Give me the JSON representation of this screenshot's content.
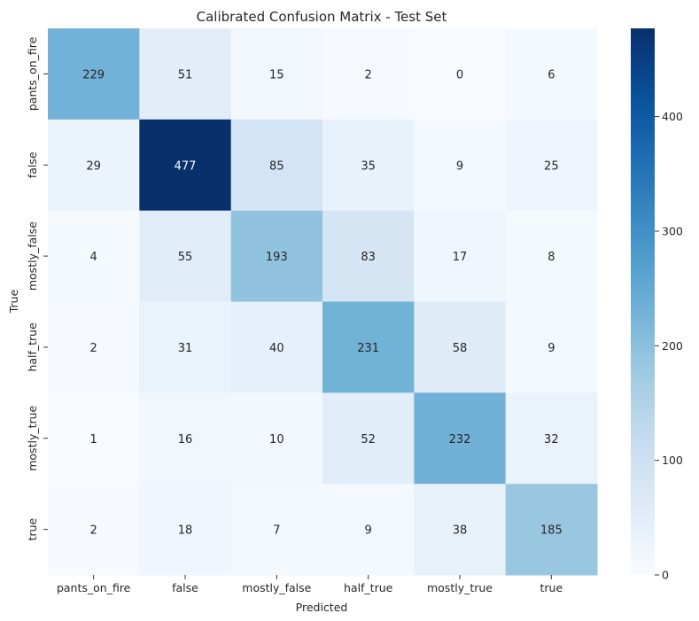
{
  "chart_data": {
    "type": "heatmap",
    "title": "Calibrated Confusion Matrix - Test Set",
    "xlabel": "Predicted",
    "ylabel": "True",
    "x_categories": [
      "pants_on_fire",
      "false",
      "mostly_false",
      "half_true",
      "mostly_true",
      "true"
    ],
    "y_categories": [
      "pants_on_fire",
      "false",
      "mostly_false",
      "half_true",
      "mostly_true",
      "true"
    ],
    "values": [
      [
        229,
        51,
        15,
        2,
        0,
        6
      ],
      [
        29,
        477,
        85,
        35,
        9,
        25
      ],
      [
        4,
        55,
        193,
        83,
        17,
        8
      ],
      [
        2,
        31,
        40,
        231,
        58,
        9
      ],
      [
        1,
        16,
        10,
        52,
        232,
        32
      ],
      [
        2,
        18,
        7,
        9,
        38,
        185
      ]
    ],
    "colormap": "Blues",
    "color_range": [
      0,
      477
    ],
    "colorbar_ticks": [
      0,
      100,
      200,
      300,
      400
    ],
    "colors": {
      "low": "#f7fbff",
      "high": "#08306b",
      "text_dark": "#262626",
      "text_light": "#ffffff"
    }
  }
}
